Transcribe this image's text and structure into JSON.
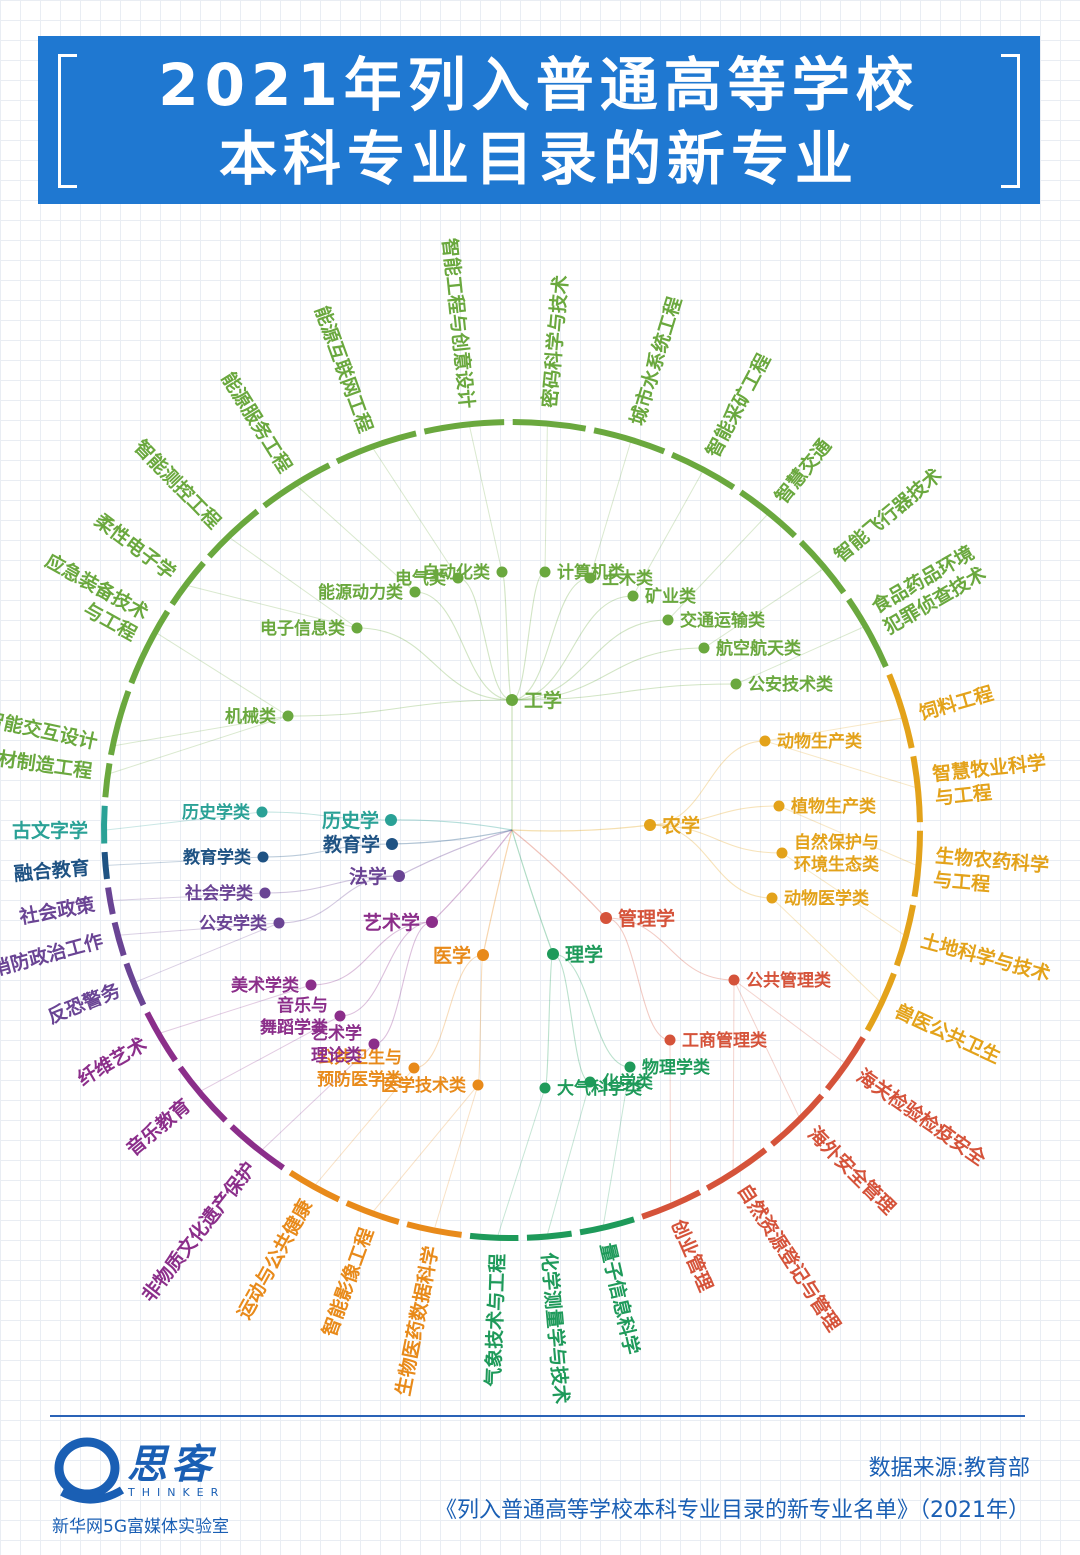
{
  "title": {
    "line1": "2021年列入普通高等学校",
    "line2": "本科专业目录的新专业"
  },
  "center": "工学",
  "colors": {
    "工学": "#6aa83e",
    "农学": "#e3a21a",
    "管理学": "#d5533a",
    "理学": "#1e9a5a",
    "医学": "#e88a1a",
    "艺术学": "#8b2e8a",
    "法学": "#6a4494",
    "教育学": "#1e5283",
    "历史学": "#2aa196"
  },
  "disciplines": [
    {
      "name": "工学",
      "color_key": "工学",
      "classes": [
        {
          "name": "机械类",
          "majors": [
            "增材制造工程",
            "智能交互设计",
            "应急装备技术\n与工程"
          ]
        },
        {
          "name": "电子信息类",
          "majors": [
            "柔性电子学",
            "智能测控工程"
          ]
        },
        {
          "name": "能源动力类",
          "majors": [
            "能源服务工程"
          ]
        },
        {
          "name": "电气类",
          "majors": [
            "能源互联网工程"
          ]
        },
        {
          "name": "自动化类",
          "majors": [
            "智能工程与创意设计"
          ]
        },
        {
          "name": "计算机类",
          "majors": [
            "密码科学与技术"
          ]
        },
        {
          "name": "土木类",
          "majors": [
            "城市水系统工程"
          ]
        },
        {
          "name": "矿业类",
          "majors": [
            "智能采矿工程"
          ]
        },
        {
          "name": "交通运输类",
          "majors": [
            "智慧交通"
          ]
        },
        {
          "name": "航空航天类",
          "majors": [
            "智能飞行器技术"
          ]
        },
        {
          "name": "公安技术类",
          "majors": [
            "食品药品环境\n犯罪侦查技术"
          ]
        }
      ]
    },
    {
      "name": "农学",
      "color_key": "农学",
      "classes": [
        {
          "name": "动物生产类",
          "majors": [
            "饲料工程",
            "智慧牧业科学\n与工程"
          ]
        },
        {
          "name": "植物生产类",
          "majors": [
            "生物农药科学\n与工程"
          ]
        },
        {
          "name": "自然保护与\n环境生态类",
          "majors": [
            "土地科学与技术"
          ]
        },
        {
          "name": "动物医学类",
          "majors": [
            "兽医公共卫生"
          ]
        }
      ]
    },
    {
      "name": "管理学",
      "color_key": "管理学",
      "classes": [
        {
          "name": "公共管理类",
          "majors": [
            "海关检验检疫安全",
            "海外安全管理",
            "自然资源登记与管理"
          ]
        },
        {
          "name": "工商管理类",
          "majors": [
            "创业管理"
          ]
        }
      ]
    },
    {
      "name": "理学",
      "color_key": "理学",
      "classes": [
        {
          "name": "物理学类",
          "majors": [
            "量子信息科学"
          ]
        },
        {
          "name": "化学类",
          "majors": [
            "化学测量学与技术"
          ]
        },
        {
          "name": "大气科学类",
          "majors": [
            "气象技术与工程"
          ]
        }
      ]
    },
    {
      "name": "医学",
      "color_key": "医学",
      "classes": [
        {
          "name": "医学技术类",
          "majors": [
            "生物医药数据科学",
            "智能影像工程"
          ]
        },
        {
          "name": "公共卫生与\n预防医学类",
          "majors": [
            "运动与公共健康"
          ]
        }
      ]
    },
    {
      "name": "艺术学",
      "color_key": "艺术学",
      "classes": [
        {
          "name": "艺术学\n理论类",
          "majors": [
            "非物质文化遗产保护"
          ]
        },
        {
          "name": "音乐与\n舞蹈学类",
          "majors": [
            "音乐教育"
          ]
        },
        {
          "name": "美术学类",
          "majors": [
            "纤维艺术"
          ]
        }
      ]
    },
    {
      "name": "法学",
      "color_key": "法学",
      "classes": [
        {
          "name": "公安学类",
          "majors": [
            "反恐警务",
            "消防政治工作"
          ]
        },
        {
          "name": "社会学类",
          "majors": [
            "社会政策"
          ]
        }
      ]
    },
    {
      "name": "教育学",
      "color_key": "教育学",
      "classes": [
        {
          "name": "教育学类",
          "majors": [
            "融合教育"
          ]
        }
      ]
    },
    {
      "name": "历史学",
      "color_key": "历史学",
      "classes": [
        {
          "name": "历史学类",
          "majors": [
            "古文字学"
          ]
        }
      ]
    }
  ],
  "footer": {
    "logo_text": "思客",
    "logo_sub": "THINKER",
    "logo_lab": "新华网5G富媒体实验室",
    "source1": "数据来源:教育部",
    "source2": "《列入普通高等学校本科专业目录的新专业名单》（2021年）"
  }
}
